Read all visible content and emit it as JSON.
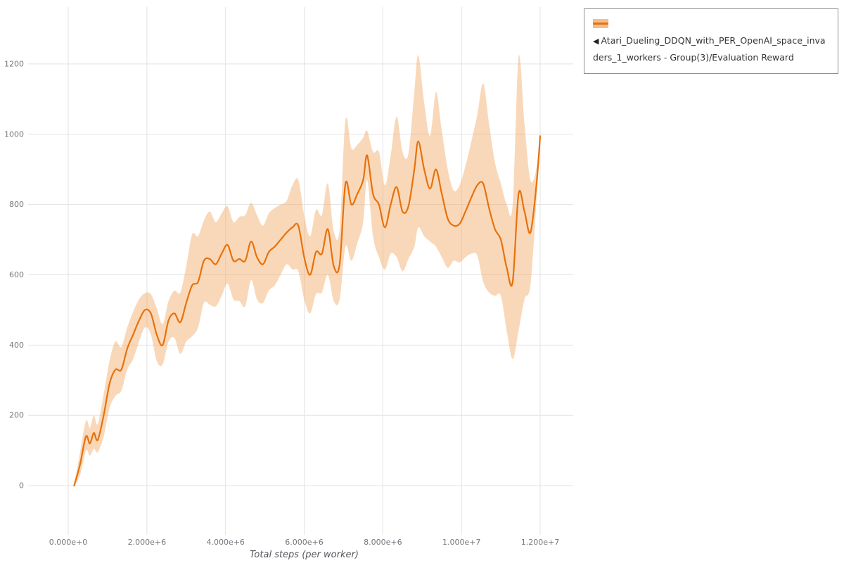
{
  "legend": {
    "arrow": "◀",
    "label": "Atari_Dueling_DDQN_with_PER_OpenAI_space_invaders_1_workers - Group(3)/Evaluation Reward"
  },
  "colors": {
    "line": "#e8710a",
    "band": "#f2a963",
    "grid": "#e3e3e3"
  },
  "chart_data": {
    "type": "line",
    "title": "",
    "xlabel": "Total steps (per worker)",
    "ylabel": "",
    "grid": true,
    "legend_position": "top-right-outside",
    "xlim": [
      -1020000,
      12840000
    ],
    "ylim": [
      -140,
      1362
    ],
    "x_ticks": [
      0,
      2000000,
      4000000,
      6000000,
      8000000,
      10000000,
      12000000
    ],
    "x_tick_labels": [
      "0.000e+0",
      "2.000e+6",
      "4.000e+6",
      "6.000e+6",
      "8.000e+6",
      "1.000e+7",
      "1.200e+7"
    ],
    "y_ticks": [
      0,
      200,
      400,
      600,
      800,
      1000,
      1200
    ],
    "series": [
      {
        "name": "Atari_Dueling_DDQN_with_PER_OpenAI_space_invaders_1_workers - Group(3)/Evaluation Reward",
        "color": "#e8710a",
        "band_color": "#f2a963",
        "x": [
          150000,
          300000,
          450000,
          550000,
          650000,
          750000,
          900000,
          1050000,
          1200000,
          1350000,
          1500000,
          1650000,
          1800000,
          1950000,
          2100000,
          2250000,
          2400000,
          2550000,
          2700000,
          2850000,
          3000000,
          3150000,
          3300000,
          3450000,
          3600000,
          3750000,
          3900000,
          4050000,
          4200000,
          4350000,
          4500000,
          4650000,
          4800000,
          4950000,
          5100000,
          5250000,
          5400000,
          5550000,
          5700000,
          5850000,
          6000000,
          6150000,
          6300000,
          6450000,
          6600000,
          6750000,
          6900000,
          7050000,
          7200000,
          7350000,
          7500000,
          7600000,
          7750000,
          7900000,
          8050000,
          8200000,
          8350000,
          8500000,
          8650000,
          8800000,
          8900000,
          9050000,
          9200000,
          9350000,
          9500000,
          9650000,
          9800000,
          9950000,
          10100000,
          10250000,
          10400000,
          10550000,
          10700000,
          10850000,
          11000000,
          11150000,
          11300000,
          11450000,
          11600000,
          11750000,
          11900000,
          12000000
        ],
        "mean": [
          0,
          60,
          140,
          120,
          150,
          130,
          200,
          290,
          330,
          330,
          390,
          430,
          470,
          500,
          490,
          430,
          400,
          470,
          490,
          465,
          520,
          570,
          580,
          640,
          645,
          630,
          660,
          685,
          640,
          645,
          640,
          695,
          650,
          630,
          665,
          680,
          700,
          720,
          735,
          740,
          650,
          600,
          665,
          660,
          730,
          625,
          630,
          860,
          800,
          830,
          870,
          940,
          830,
          800,
          735,
          800,
          850,
          780,
          795,
          900,
          980,
          900,
          845,
          900,
          830,
          760,
          740,
          745,
          780,
          820,
          855,
          860,
          790,
          730,
          700,
          620,
          580,
          830,
          780,
          720,
          850,
          995
        ],
        "lower": [
          -2,
          30,
          100,
          85,
          105,
          95,
          140,
          220,
          255,
          270,
          330,
          360,
          410,
          450,
          430,
          355,
          345,
          410,
          420,
          375,
          410,
          425,
          450,
          520,
          515,
          510,
          540,
          575,
          530,
          525,
          510,
          585,
          530,
          520,
          555,
          570,
          600,
          630,
          615,
          610,
          530,
          490,
          545,
          550,
          600,
          525,
          530,
          680,
          640,
          690,
          750,
          870,
          710,
          650,
          615,
          660,
          650,
          610,
          645,
          680,
          735,
          710,
          695,
          680,
          650,
          620,
          640,
          635,
          650,
          660,
          655,
          580,
          550,
          540,
          540,
          440,
          360,
          440,
          530,
          570,
          800,
          985
        ],
        "upper": [
          2,
          95,
          185,
          165,
          200,
          175,
          260,
          355,
          410,
          395,
          450,
          495,
          530,
          548,
          545,
          505,
          460,
          525,
          555,
          550,
          625,
          715,
          710,
          755,
          780,
          750,
          775,
          795,
          750,
          765,
          770,
          805,
          770,
          740,
          775,
          790,
          800,
          810,
          855,
          870,
          770,
          710,
          785,
          770,
          860,
          725,
          730,
          1040,
          960,
          970,
          990,
          1010,
          950,
          950,
          855,
          940,
          1050,
          950,
          945,
          1120,
          1225,
          1090,
          995,
          1120,
          1010,
          900,
          840,
          855,
          910,
          980,
          1055,
          1145,
          1030,
          920,
          860,
          800,
          800,
          1220,
          1030,
          870,
          900,
          1005
        ]
      }
    ]
  }
}
